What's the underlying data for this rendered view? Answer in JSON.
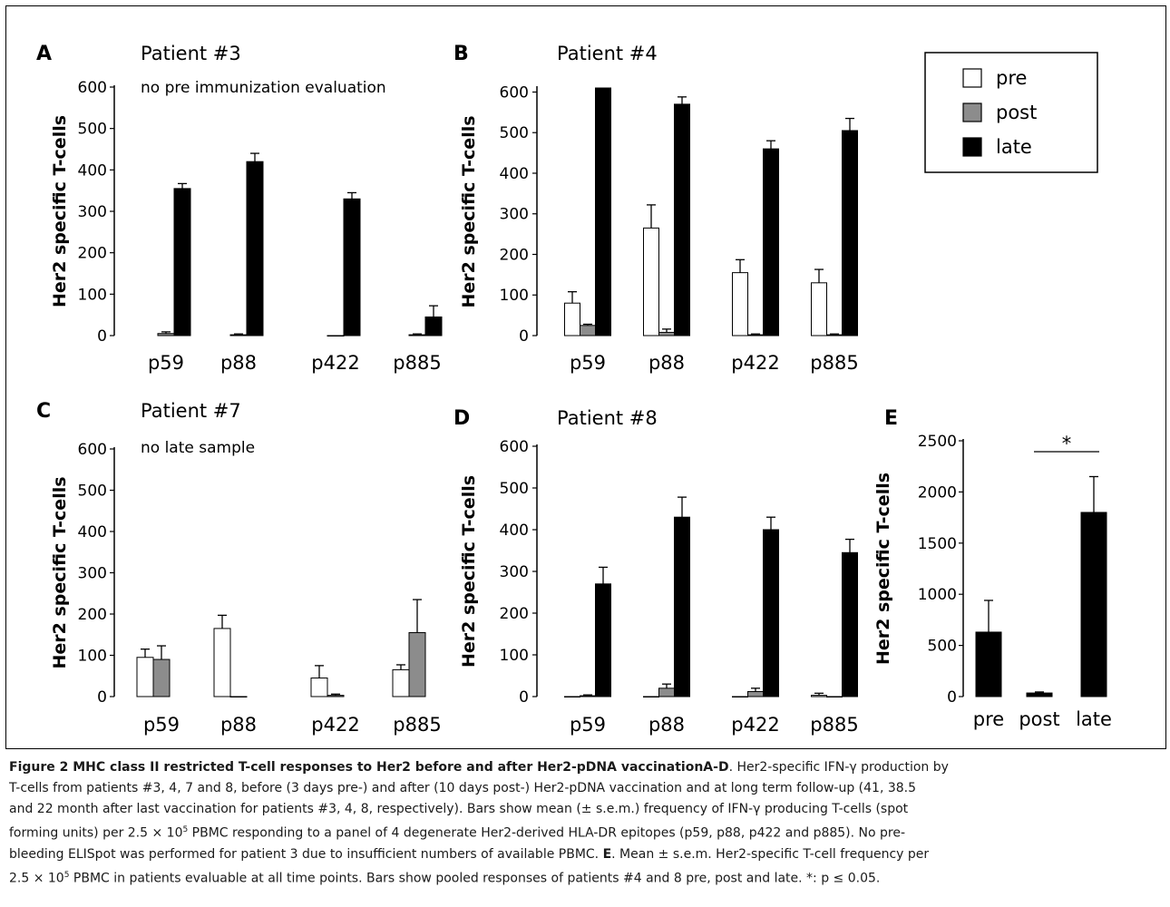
{
  "legend": {
    "items": [
      {
        "label": "pre",
        "color": "#ffffff"
      },
      {
        "label": "post",
        "color": "#8c8c8c"
      },
      {
        "label": "late",
        "color": "#000000"
      }
    ]
  },
  "chart_data": [
    {
      "letter": "A",
      "title": "Patient #3",
      "note": "no pre immunization evaluation",
      "type": "bar",
      "ylabel": "Her2 specific T-cells",
      "ylim": [
        0,
        600
      ],
      "yticks": [
        "0",
        "100",
        "200",
        "300",
        "400",
        "500",
        "600"
      ],
      "categories": [
        "p59",
        "p88",
        "p422",
        "p885"
      ],
      "series": [
        {
          "name": "post",
          "color": "#8c8c8c",
          "values": [
            5,
            2,
            0,
            2
          ],
          "errors": [
            4,
            2,
            0,
            2
          ]
        },
        {
          "name": "late",
          "color": "#000000",
          "values": [
            355,
            420,
            330,
            45
          ],
          "errors": [
            12,
            20,
            15,
            27
          ]
        }
      ]
    },
    {
      "letter": "B",
      "title": "Patient #4",
      "note": "",
      "type": "bar",
      "ylabel": "Her2 specific T-cells",
      "ylim": [
        0,
        610
      ],
      "yticks": [
        "0",
        "100",
        "200",
        "300",
        "400",
        "500",
        "600"
      ],
      "categories": [
        "p59",
        "p88",
        "p422",
        "p885"
      ],
      "series": [
        {
          "name": "pre",
          "color": "#ffffff",
          "values": [
            80,
            265,
            155,
            130
          ],
          "errors": [
            28,
            57,
            32,
            33
          ]
        },
        {
          "name": "post",
          "color": "#8c8c8c",
          "values": [
            25,
            8,
            2,
            2
          ],
          "errors": [
            3,
            8,
            2,
            2
          ]
        },
        {
          "name": "late",
          "color": "#000000",
          "values": [
            610,
            570,
            460,
            505
          ],
          "errors": [
            0,
            18,
            20,
            30
          ]
        }
      ]
    },
    {
      "letter": "C",
      "title": "Patient #7",
      "note": "no late sample",
      "type": "bar",
      "ylabel": "Her2 specific T-cells",
      "ylim": [
        0,
        600
      ],
      "yticks": [
        "0",
        "100",
        "200",
        "300",
        "400",
        "500",
        "600"
      ],
      "categories": [
        "p59",
        "p88",
        "p422",
        "p885"
      ],
      "series": [
        {
          "name": "pre",
          "color": "#ffffff",
          "values": [
            95,
            165,
            45,
            65
          ],
          "errors": [
            20,
            32,
            30,
            12
          ]
        },
        {
          "name": "post",
          "color": "#8c8c8c",
          "values": [
            90,
            0,
            3,
            155
          ],
          "errors": [
            33,
            0,
            3,
            80
          ]
        }
      ]
    },
    {
      "letter": "D",
      "title": "Patient #8",
      "note": "",
      "type": "bar",
      "ylabel": "Her2 specific T-cells",
      "ylim": [
        0,
        600
      ],
      "yticks": [
        "0",
        "100",
        "200",
        "300",
        "400",
        "500",
        "600"
      ],
      "categories": [
        "p59",
        "p88",
        "p422",
        "p885"
      ],
      "series": [
        {
          "name": "pre",
          "color": "#ffffff",
          "values": [
            0,
            0,
            0,
            3
          ],
          "errors": [
            0,
            0,
            0,
            5
          ]
        },
        {
          "name": "post",
          "color": "#8c8c8c",
          "values": [
            2,
            20,
            12,
            0
          ],
          "errors": [
            2,
            10,
            8,
            0
          ]
        },
        {
          "name": "late",
          "color": "#000000",
          "values": [
            270,
            430,
            400,
            345
          ],
          "errors": [
            40,
            48,
            30,
            32
          ]
        }
      ]
    },
    {
      "letter": "E",
      "title": "",
      "note": "",
      "type": "bar",
      "ylabel": "Her2 specific T-cells",
      "ylim": [
        0,
        2500
      ],
      "yticks": [
        "0",
        "500",
        "1000",
        "1500",
        "2000",
        "2500"
      ],
      "categories": [
        "pre",
        "post",
        "late"
      ],
      "series": [
        {
          "name": "",
          "color": "#000000",
          "values": [
            630,
            35,
            1800
          ],
          "errors": [
            310,
            10,
            350
          ]
        }
      ],
      "significance": {
        "label": "*",
        "from": "post",
        "to": "late"
      }
    }
  ],
  "caption": {
    "title": "Figure 2 MHC class II restricted T-cell responses to Her2 before and after Her2-pDNA vaccination",
    "lines": [
      [
        {
          "b": "A-D"
        },
        ". Her2-specific IFN-γ production by"
      ],
      [
        "T-cells from patients #3, 4, 7 and 8, before (3 days pre-) and after (10 days post-) Her2-pDNA vaccination and at long term follow-up (41, 38.5"
      ],
      [
        "and 22 month after last vaccination for patients #3, 4, 8, respectively). Bars show mean (± s.e.m.) frequency of IFN-γ producing T-cells (spot"
      ],
      [
        "forming units) per 2.5 × 10",
        {
          "sup": "5"
        },
        " PBMC responding to a panel of 4 degenerate Her2-derived HLA-DR epitopes (p59, p88, p422 and p885). No pre-"
      ],
      [
        "bleeding ELISpot was performed for patient 3 due to insufficient numbers of available PBMC. ",
        {
          "b": "E"
        },
        ". Mean ± s.e.m. Her2-specific T-cell frequency per"
      ],
      [
        "2.5 × 10",
        {
          "sup": "5"
        },
        " PBMC in patients evaluable at all time points. Bars show pooled responses of patients #4 and 8 pre, post and late. *: p ≤ 0.05."
      ]
    ]
  }
}
